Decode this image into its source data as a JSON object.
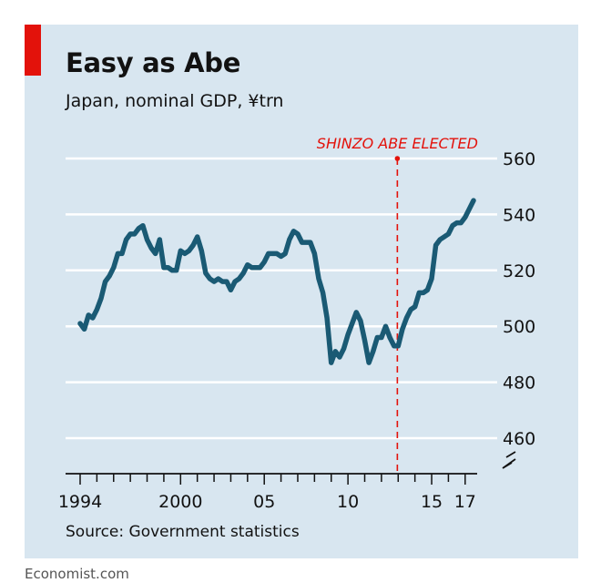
{
  "colors": {
    "background": "#d8e6f0",
    "series": "#1a5a74",
    "annotation": "#e3120b",
    "gridline": "#ffffff",
    "text": "#121212"
  },
  "chart_data": {
    "type": "line",
    "title": "Easy as Abe",
    "subtitle": "Japan, nominal GDP, ¥trn",
    "source": "Source: Government statistics",
    "brand": "Economist.com",
    "ylim": [
      460,
      560
    ],
    "y_axis_position": "right",
    "y_ticks": [
      460,
      480,
      500,
      520,
      540,
      560
    ],
    "y_axis_break": true,
    "grid": "horizontal",
    "x_range": [
      1994.0,
      2017.5
    ],
    "x_tick_labels": [
      {
        "x": 1994,
        "label": "1994"
      },
      {
        "x": 2000,
        "label": "2000"
      },
      {
        "x": 2005,
        "label": "05"
      },
      {
        "x": 2010,
        "label": "10"
      },
      {
        "x": 2015,
        "label": "15"
      },
      {
        "x": 2017,
        "label": "17"
      }
    ],
    "annotations": [
      {
        "x": 2012.95,
        "label": "SHINZO ABE ELECTED",
        "y": 560
      }
    ],
    "series": [
      {
        "values": [
          [
            1994.0,
            501
          ],
          [
            1994.25,
            499
          ],
          [
            1994.5,
            504
          ],
          [
            1994.75,
            503
          ],
          [
            1995.0,
            506
          ],
          [
            1995.25,
            510
          ],
          [
            1995.5,
            516
          ],
          [
            1995.75,
            518
          ],
          [
            1996.0,
            521
          ],
          [
            1996.25,
            526
          ],
          [
            1996.5,
            526
          ],
          [
            1996.75,
            531
          ],
          [
            1997.0,
            533
          ],
          [
            1997.25,
            533
          ],
          [
            1997.5,
            535
          ],
          [
            1997.75,
            536
          ],
          [
            1998.0,
            531
          ],
          [
            1998.25,
            528
          ],
          [
            1998.5,
            526
          ],
          [
            1998.75,
            531
          ],
          [
            1999.0,
            521
          ],
          [
            1999.25,
            521
          ],
          [
            1999.5,
            520
          ],
          [
            1999.75,
            520
          ],
          [
            2000.0,
            527
          ],
          [
            2000.25,
            526
          ],
          [
            2000.5,
            527
          ],
          [
            2000.75,
            529
          ],
          [
            2001.0,
            532
          ],
          [
            2001.25,
            527
          ],
          [
            2001.5,
            519
          ],
          [
            2001.75,
            517
          ],
          [
            2002.0,
            516
          ],
          [
            2002.25,
            517
          ],
          [
            2002.5,
            516
          ],
          [
            2002.75,
            516
          ],
          [
            2003.0,
            513
          ],
          [
            2003.25,
            516
          ],
          [
            2003.5,
            517
          ],
          [
            2003.75,
            519
          ],
          [
            2004.0,
            522
          ],
          [
            2004.25,
            521
          ],
          [
            2004.5,
            521
          ],
          [
            2004.75,
            521
          ],
          [
            2005.0,
            523
          ],
          [
            2005.25,
            526
          ],
          [
            2005.5,
            526
          ],
          [
            2005.75,
            526
          ],
          [
            2006.0,
            525
          ],
          [
            2006.25,
            526
          ],
          [
            2006.5,
            531
          ],
          [
            2006.75,
            534
          ],
          [
            2007.0,
            533
          ],
          [
            2007.25,
            530
          ],
          [
            2007.5,
            530
          ],
          [
            2007.75,
            530
          ],
          [
            2008.0,
            526
          ],
          [
            2008.25,
            517
          ],
          [
            2008.5,
            512
          ],
          [
            2008.75,
            503
          ],
          [
            2009.0,
            487
          ],
          [
            2009.25,
            491
          ],
          [
            2009.5,
            489
          ],
          [
            2009.75,
            492
          ],
          [
            2010.0,
            497
          ],
          [
            2010.25,
            501
          ],
          [
            2010.5,
            505
          ],
          [
            2010.75,
            502
          ],
          [
            2011.0,
            495
          ],
          [
            2011.25,
            487
          ],
          [
            2011.5,
            491
          ],
          [
            2011.75,
            496
          ],
          [
            2012.0,
            496
          ],
          [
            2012.25,
            500
          ],
          [
            2012.5,
            496
          ],
          [
            2012.75,
            493
          ],
          [
            2013.0,
            493
          ],
          [
            2013.25,
            499
          ],
          [
            2013.5,
            503
          ],
          [
            2013.75,
            506
          ],
          [
            2014.0,
            507
          ],
          [
            2014.25,
            512
          ],
          [
            2014.5,
            512
          ],
          [
            2014.75,
            513
          ],
          [
            2015.0,
            517
          ],
          [
            2015.25,
            529
          ],
          [
            2015.5,
            531
          ],
          [
            2015.75,
            532
          ],
          [
            2016.0,
            533
          ],
          [
            2016.25,
            536
          ],
          [
            2016.5,
            537
          ],
          [
            2016.75,
            537
          ],
          [
            2017.0,
            539
          ],
          [
            2017.25,
            542
          ],
          [
            2017.5,
            545
          ]
        ]
      }
    ]
  }
}
